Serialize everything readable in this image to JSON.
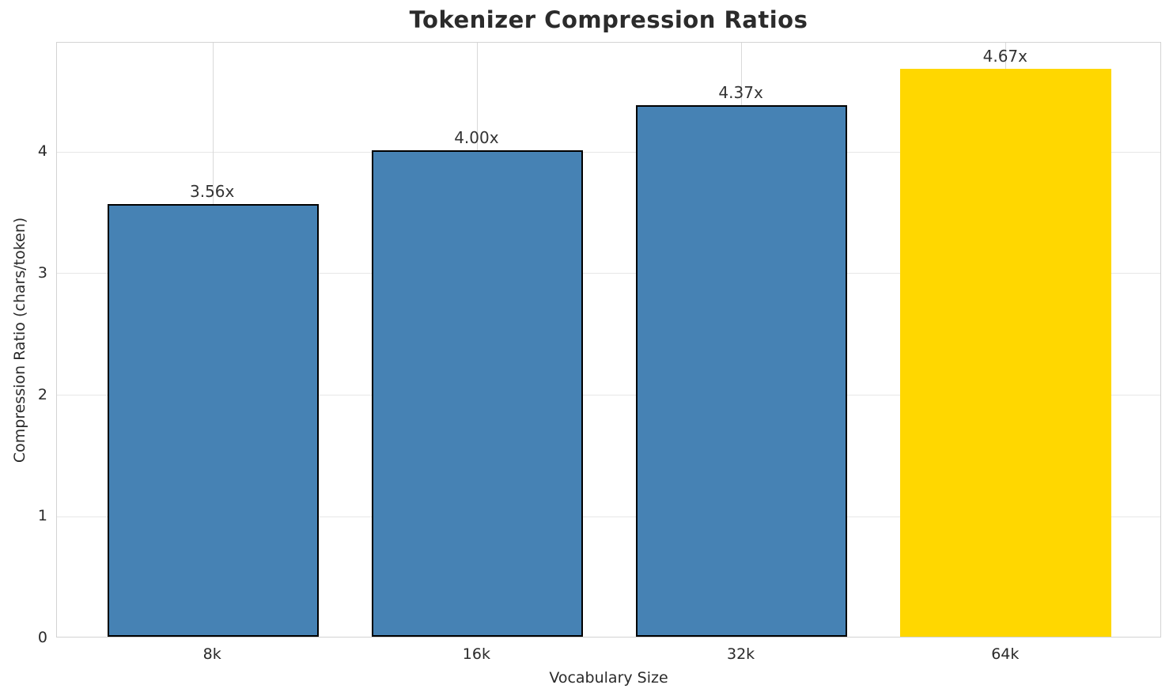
{
  "chart_data": {
    "type": "bar",
    "title": "Tokenizer Compression Ratios",
    "xlabel": "Vocabulary Size",
    "ylabel": "Compression Ratio (chars/token)",
    "categories": [
      "8k",
      "16k",
      "32k",
      "64k"
    ],
    "values": [
      3.56,
      4.0,
      4.37,
      4.67
    ],
    "value_labels": [
      "3.56x",
      "4.00x",
      "4.37x",
      "4.67x"
    ],
    "bar_colors": [
      "#4682B4",
      "#4682B4",
      "#4682B4",
      "#FFD700"
    ],
    "bar_edge_colors": [
      "#000000",
      "#000000",
      "#000000",
      "none"
    ],
    "ylim": [
      0,
      4.9
    ],
    "yticks": [
      0,
      1,
      2,
      3,
      4
    ],
    "grid": true,
    "legend": "none",
    "colors": {
      "bar_default": "#4682B4",
      "bar_highlight": "#FFD700",
      "bar_edge": "#000000",
      "grid_horizontal": "#e7e7e7",
      "grid_vertical": "#d9d9d9",
      "spine": "#d3d3d3",
      "text": "#2a2a2a",
      "title_text": "#2b2b2b",
      "background": "#ffffff"
    }
  }
}
